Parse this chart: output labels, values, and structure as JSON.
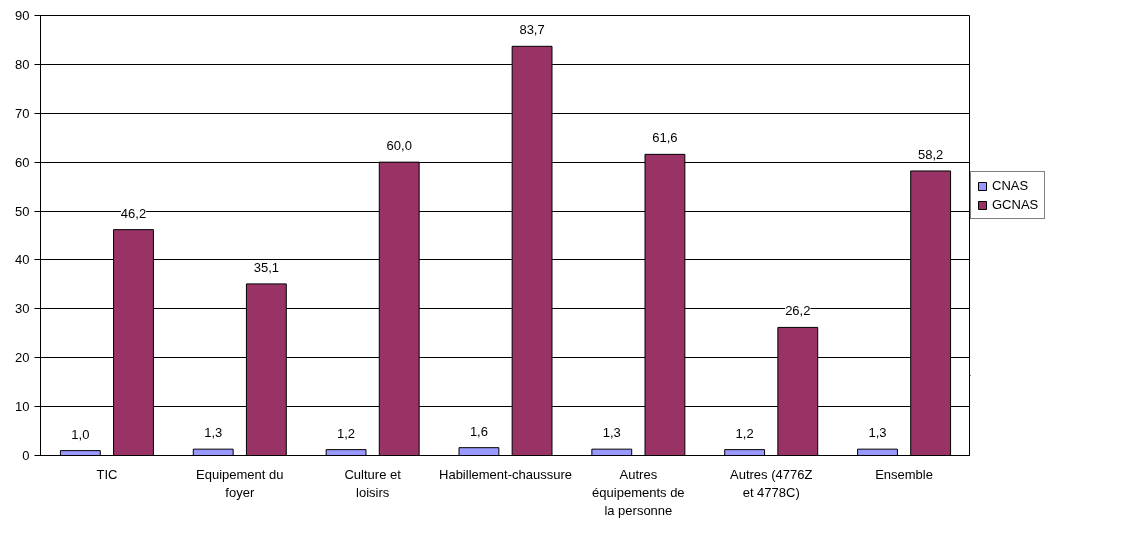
{
  "chart_data": {
    "type": "bar",
    "categories": [
      "TIC",
      "Equipement du foyer",
      "Culture et loisirs",
      "Habillement-chaussure",
      "Autres équipements de la personne",
      "Autres (4776Z et 4778C)",
      "Ensemble"
    ],
    "series": [
      {
        "name": "CNAS",
        "color": "#9999ff",
        "values": [
          1.0,
          1.3,
          1.2,
          1.6,
          1.3,
          1.2,
          1.3
        ],
        "value_labels": [
          "1,0",
          "1,3",
          "1,2",
          "1,6",
          "1,3",
          "1,2",
          "1,3"
        ]
      },
      {
        "name": "GCNAS",
        "color": "#993366",
        "values": [
          46.2,
          35.1,
          60.0,
          83.7,
          61.6,
          26.2,
          58.2
        ],
        "value_labels": [
          "46,2",
          "35,1",
          "60,0",
          "83,7",
          "61,6",
          "26,2",
          "58,2"
        ]
      }
    ],
    "ylim": [
      0,
      90
    ],
    "yticks": [
      0,
      10,
      20,
      30,
      40,
      50,
      60,
      70,
      80,
      90
    ],
    "grid": "y",
    "legend": "right"
  }
}
